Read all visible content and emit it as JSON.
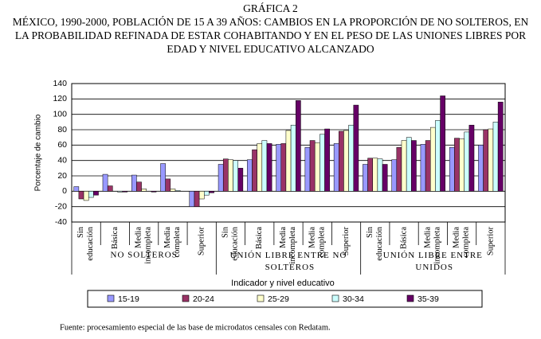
{
  "chart_data": {
    "type": "bar",
    "title": "GRÁFICA 2",
    "subtitle": "MÉXICO, 1990-2000, POBLACIÓN DE 15 A 39 AÑOS: CAMBIOS EN LA PROPORCIÓN DE NO SOLTEROS, EN LA PROBABILIDAD REFINADA DE ESTAR COHABITANDO Y EN EL PESO DE LAS UNIONES LIBRES POR EDAD Y NIVEL EDUCATIVO ALCANZADO",
    "y_label": "Porcentaje de cambio",
    "x_label": "Indicador y nivel educativo",
    "source": "Fuente: procesamiento especial de las base de microdatos censales con Redatam.",
    "groups": [
      "NO SOLTEROS",
      "UNIÓN LIBRE ENTRE NO SOLTEROS",
      "UNIÓN LIBRE ENTRE UNIDOS"
    ],
    "categories": [
      "Sin educación",
      "Básica",
      "Media incompleta",
      "Media completa",
      "Superior",
      "Sin educación",
      "Básica",
      "Media incompleta",
      "Media completa",
      "Superior",
      "Sin educación",
      "Básica",
      "Media incompleta",
      "Media completa",
      "Superior"
    ],
    "series": [
      {
        "name": "15-19",
        "color": "#9999ff",
        "values": [
          6,
          22,
          21,
          36,
          -20,
          35,
          41,
          61,
          57,
          62,
          35,
          41,
          61,
          57,
          60
        ]
      },
      {
        "name": "20-24",
        "color": "#993366",
        "values": [
          -10,
          7,
          12,
          16,
          -20,
          42,
          54,
          62,
          66,
          78,
          43,
          57,
          66,
          69,
          80
        ]
      },
      {
        "name": "25-29",
        "color": "#ffffcc",
        "values": [
          -12,
          0,
          3,
          3,
          -10,
          41,
          62,
          79,
          63,
          79,
          43,
          66,
          83,
          68,
          81
        ]
      },
      {
        "name": "30-34",
        "color": "#ccffff",
        "values": [
          -8,
          -1,
          0,
          1,
          -5,
          40,
          66,
          86,
          74,
          86,
          42,
          70,
          92,
          77,
          90
        ]
      },
      {
        "name": "35-39",
        "color": "#660066",
        "values": [
          -5,
          -1,
          -1,
          0,
          -2,
          30,
          62,
          118,
          81,
          112,
          35,
          66,
          124,
          86,
          116
        ]
      }
    ],
    "ylim": [
      -40,
      140
    ],
    "yticks": [
      -40,
      -20,
      0,
      20,
      40,
      60,
      80,
      100,
      120,
      140
    ],
    "grid": true
  }
}
